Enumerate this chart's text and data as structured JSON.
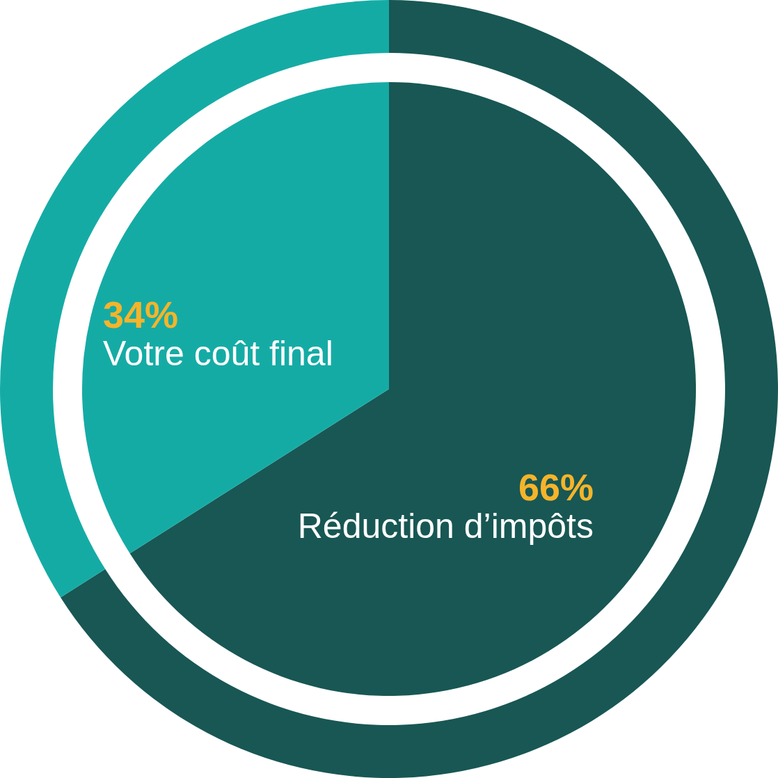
{
  "chart_data": {
    "type": "pie",
    "categories": [
      "Réduction d’impôts",
      "Votre coût final"
    ],
    "colors": [
      "#185754",
      "#15aba5"
    ],
    "series": [
      {
        "type": "donut",
        "values": [
          66,
          34
        ]
      },
      {
        "values": [
          66,
          34
        ],
        "value_labels": [
          "66%",
          "34%"
        ]
      }
    ]
  }
}
